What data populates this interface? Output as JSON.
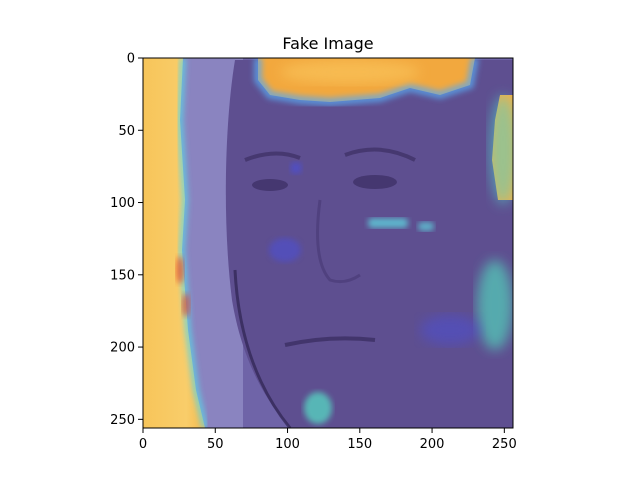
{
  "chart_data": {
    "type": "heatmap",
    "title": "Fake Image",
    "xlabel": "",
    "ylabel": "",
    "xlim": [
      0,
      256
    ],
    "ylim": [
      256,
      0
    ],
    "xticks": [
      0,
      50,
      100,
      150,
      200,
      250
    ],
    "yticks": [
      0,
      50,
      100,
      150,
      200,
      250
    ],
    "grid": false,
    "legend": "none",
    "colors": {
      "base_overlay": "#6a5a9c",
      "hot": "#f6c453",
      "warm": "#f3a33a",
      "cyan": "#3fd0c0",
      "blue": "#4a4fe0",
      "red": "#e0452a"
    },
    "overlay": "saliency heatmap over face photo"
  }
}
